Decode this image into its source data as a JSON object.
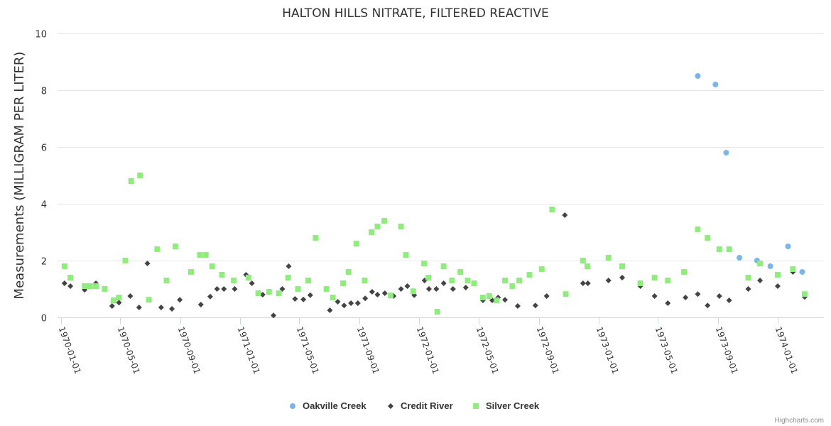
{
  "chart_data": {
    "type": "scatter",
    "title": "HALTON HILLS NITRATE, FILTERED REACTIVE",
    "ylabel": "Measurements (MILLIGRAM PER LITER)",
    "xlabel": "",
    "ylim": [
      0,
      10
    ],
    "yticks": [
      "0",
      "2",
      "4",
      "6",
      "8",
      "10"
    ],
    "xticks": [
      "1970-01-01",
      "1970-05-01",
      "1970-09-01",
      "1971-01-01",
      "1971-05-01",
      "1971-09-01",
      "1972-01-01",
      "1972-05-01",
      "1972-09-01",
      "1973-01-01",
      "1973-05-01",
      "1973-09-01",
      "1974-01-01"
    ],
    "grid": true,
    "legend_position": "bottom-center",
    "credits": "Highcharts.com",
    "series": [
      {
        "name": "Oakville Creek",
        "color": "#7cb5ec",
        "marker": "circle",
        "points": [
          [
            "1973-07-22",
            8.5
          ],
          [
            "1973-08-27",
            8.2
          ],
          [
            "1973-09-18",
            5.8
          ],
          [
            "1973-10-15",
            2.1
          ],
          [
            "1973-11-20",
            2.0
          ],
          [
            "1973-12-17",
            1.8
          ],
          [
            "1974-01-22",
            2.5
          ],
          [
            "1974-02-20",
            1.6
          ]
        ]
      },
      {
        "name": "Credit River",
        "color": "#434348",
        "marker": "diamond",
        "points": [
          [
            "1970-01-08",
            1.2
          ],
          [
            "1970-01-20",
            1.1
          ],
          [
            "1970-02-18",
            0.97
          ],
          [
            "1970-03-13",
            1.2
          ],
          [
            "1970-04-15",
            0.4
          ],
          [
            "1970-04-29",
            0.52
          ],
          [
            "1970-05-22",
            0.75
          ],
          [
            "1970-06-09",
            0.35
          ],
          [
            "1970-06-26",
            1.9
          ],
          [
            "1970-07-24",
            0.35
          ],
          [
            "1970-08-15",
            0.3
          ],
          [
            "1970-08-31",
            0.62
          ],
          [
            "1970-10-13",
            0.45
          ],
          [
            "1970-11-01",
            0.73
          ],
          [
            "1970-11-15",
            1.0
          ],
          [
            "1970-11-29",
            1.0
          ],
          [
            "1970-12-21",
            1.0
          ],
          [
            "1971-01-13",
            1.5
          ],
          [
            "1971-01-25",
            1.2
          ],
          [
            "1971-02-16",
            0.8
          ],
          [
            "1971-03-10",
            0.07
          ],
          [
            "1971-03-28",
            1.0
          ],
          [
            "1971-04-10",
            1.8
          ],
          [
            "1971-04-23",
            0.65
          ],
          [
            "1971-05-10",
            0.63
          ],
          [
            "1971-05-24",
            0.78
          ],
          [
            "1971-07-03",
            0.25
          ],
          [
            "1971-07-19",
            0.55
          ],
          [
            "1971-08-01",
            0.42
          ],
          [
            "1971-08-15",
            0.5
          ],
          [
            "1971-08-29",
            0.5
          ],
          [
            "1971-09-13",
            0.67
          ],
          [
            "1971-09-27",
            0.9
          ],
          [
            "1971-10-08",
            0.8
          ],
          [
            "1971-10-23",
            0.85
          ],
          [
            "1971-11-10",
            0.75
          ],
          [
            "1971-11-25",
            1.0
          ],
          [
            "1971-12-08",
            1.1
          ],
          [
            "1971-12-22",
            0.78
          ],
          [
            "1972-01-12",
            1.3
          ],
          [
            "1972-01-21",
            1.0
          ],
          [
            "1972-02-05",
            1.0
          ],
          [
            "1972-02-20",
            1.2
          ],
          [
            "1972-03-10",
            1.0
          ],
          [
            "1972-04-05",
            1.05
          ],
          [
            "1972-05-10",
            0.6
          ],
          [
            "1972-05-29",
            0.6
          ],
          [
            "1972-06-10",
            0.7
          ],
          [
            "1972-06-24",
            0.62
          ],
          [
            "1972-07-20",
            0.4
          ],
          [
            "1972-08-25",
            0.42
          ],
          [
            "1972-09-17",
            0.75
          ],
          [
            "1972-10-24",
            3.6
          ],
          [
            "1972-11-30",
            1.2
          ],
          [
            "1972-12-10",
            1.2
          ],
          [
            "1973-01-21",
            1.3
          ],
          [
            "1973-02-18",
            1.4
          ],
          [
            "1973-03-27",
            1.1
          ],
          [
            "1973-04-25",
            0.75
          ],
          [
            "1973-05-22",
            0.5
          ],
          [
            "1973-06-27",
            0.7
          ],
          [
            "1973-07-22",
            0.82
          ],
          [
            "1973-08-11",
            0.42
          ],
          [
            "1973-09-04",
            0.75
          ],
          [
            "1973-09-24",
            0.6
          ],
          [
            "1973-11-02",
            1.0
          ],
          [
            "1973-11-26",
            1.3
          ],
          [
            "1974-01-01",
            1.1
          ],
          [
            "1974-02-01",
            1.6
          ],
          [
            "1974-02-25",
            0.72
          ]
        ]
      },
      {
        "name": "Silver Creek",
        "color": "#90ed7d",
        "marker": "square",
        "points": [
          [
            "1970-01-08",
            1.8
          ],
          [
            "1970-01-20",
            1.4
          ],
          [
            "1970-02-18",
            1.1
          ],
          [
            "1970-03-01",
            1.1
          ],
          [
            "1970-03-13",
            1.1
          ],
          [
            "1970-03-31",
            1.0
          ],
          [
            "1970-04-18",
            0.6
          ],
          [
            "1970-04-29",
            0.7
          ],
          [
            "1970-05-12",
            2.0
          ],
          [
            "1970-05-24",
            4.8
          ],
          [
            "1970-06-11",
            5.0
          ],
          [
            "1970-06-29",
            0.62
          ],
          [
            "1970-07-16",
            2.4
          ],
          [
            "1970-08-04",
            1.3
          ],
          [
            "1970-08-22",
            2.5
          ],
          [
            "1970-09-23",
            1.6
          ],
          [
            "1970-10-11",
            2.2
          ],
          [
            "1970-10-23",
            2.2
          ],
          [
            "1970-11-05",
            1.8
          ],
          [
            "1970-11-25",
            1.5
          ],
          [
            "1970-12-19",
            1.3
          ],
          [
            "1971-01-18",
            1.4
          ],
          [
            "1971-02-07",
            0.85
          ],
          [
            "1971-03-01",
            0.9
          ],
          [
            "1971-03-21",
            0.85
          ],
          [
            "1971-04-09",
            1.4
          ],
          [
            "1971-04-29",
            1.0
          ],
          [
            "1971-05-20",
            1.3
          ],
          [
            "1971-06-04",
            2.8
          ],
          [
            "1971-06-26",
            1.0
          ],
          [
            "1971-07-09",
            0.7
          ],
          [
            "1971-07-30",
            1.2
          ],
          [
            "1971-08-10",
            1.6
          ],
          [
            "1971-08-26",
            2.6
          ],
          [
            "1971-09-12",
            1.3
          ],
          [
            "1971-09-26",
            3.0
          ],
          [
            "1971-10-08",
            3.2
          ],
          [
            "1971-10-22",
            3.4
          ],
          [
            "1971-11-04",
            0.77
          ],
          [
            "1971-11-25",
            3.2
          ],
          [
            "1971-12-05",
            2.2
          ],
          [
            "1971-12-20",
            0.92
          ],
          [
            "1972-01-11",
            1.9
          ],
          [
            "1972-01-20",
            1.4
          ],
          [
            "1972-02-07",
            0.2
          ],
          [
            "1972-02-20",
            1.8
          ],
          [
            "1972-03-08",
            1.3
          ],
          [
            "1972-03-25",
            1.6
          ],
          [
            "1972-04-09",
            1.3
          ],
          [
            "1972-04-22",
            1.2
          ],
          [
            "1972-05-10",
            0.7
          ],
          [
            "1972-05-23",
            0.75
          ],
          [
            "1972-06-07",
            0.6
          ],
          [
            "1972-06-24",
            1.3
          ],
          [
            "1972-07-09",
            1.1
          ],
          [
            "1972-07-23",
            1.3
          ],
          [
            "1972-08-13",
            1.5
          ],
          [
            "1972-09-07",
            1.7
          ],
          [
            "1972-09-28",
            3.8
          ],
          [
            "1972-10-26",
            0.82
          ],
          [
            "1972-11-30",
            2.0
          ],
          [
            "1972-12-09",
            1.8
          ],
          [
            "1973-01-21",
            2.1
          ],
          [
            "1973-02-18",
            1.8
          ],
          [
            "1973-03-27",
            1.2
          ],
          [
            "1973-04-25",
            1.4
          ],
          [
            "1973-05-22",
            1.3
          ],
          [
            "1973-06-24",
            1.6
          ],
          [
            "1973-07-22",
            3.1
          ],
          [
            "1973-08-11",
            2.8
          ],
          [
            "1973-09-04",
            2.4
          ],
          [
            "1973-09-24",
            2.4
          ],
          [
            "1973-11-02",
            1.4
          ],
          [
            "1973-11-26",
            1.9
          ],
          [
            "1974-01-01",
            1.5
          ],
          [
            "1974-02-01",
            1.7
          ],
          [
            "1974-02-25",
            0.82
          ]
        ]
      }
    ]
  }
}
